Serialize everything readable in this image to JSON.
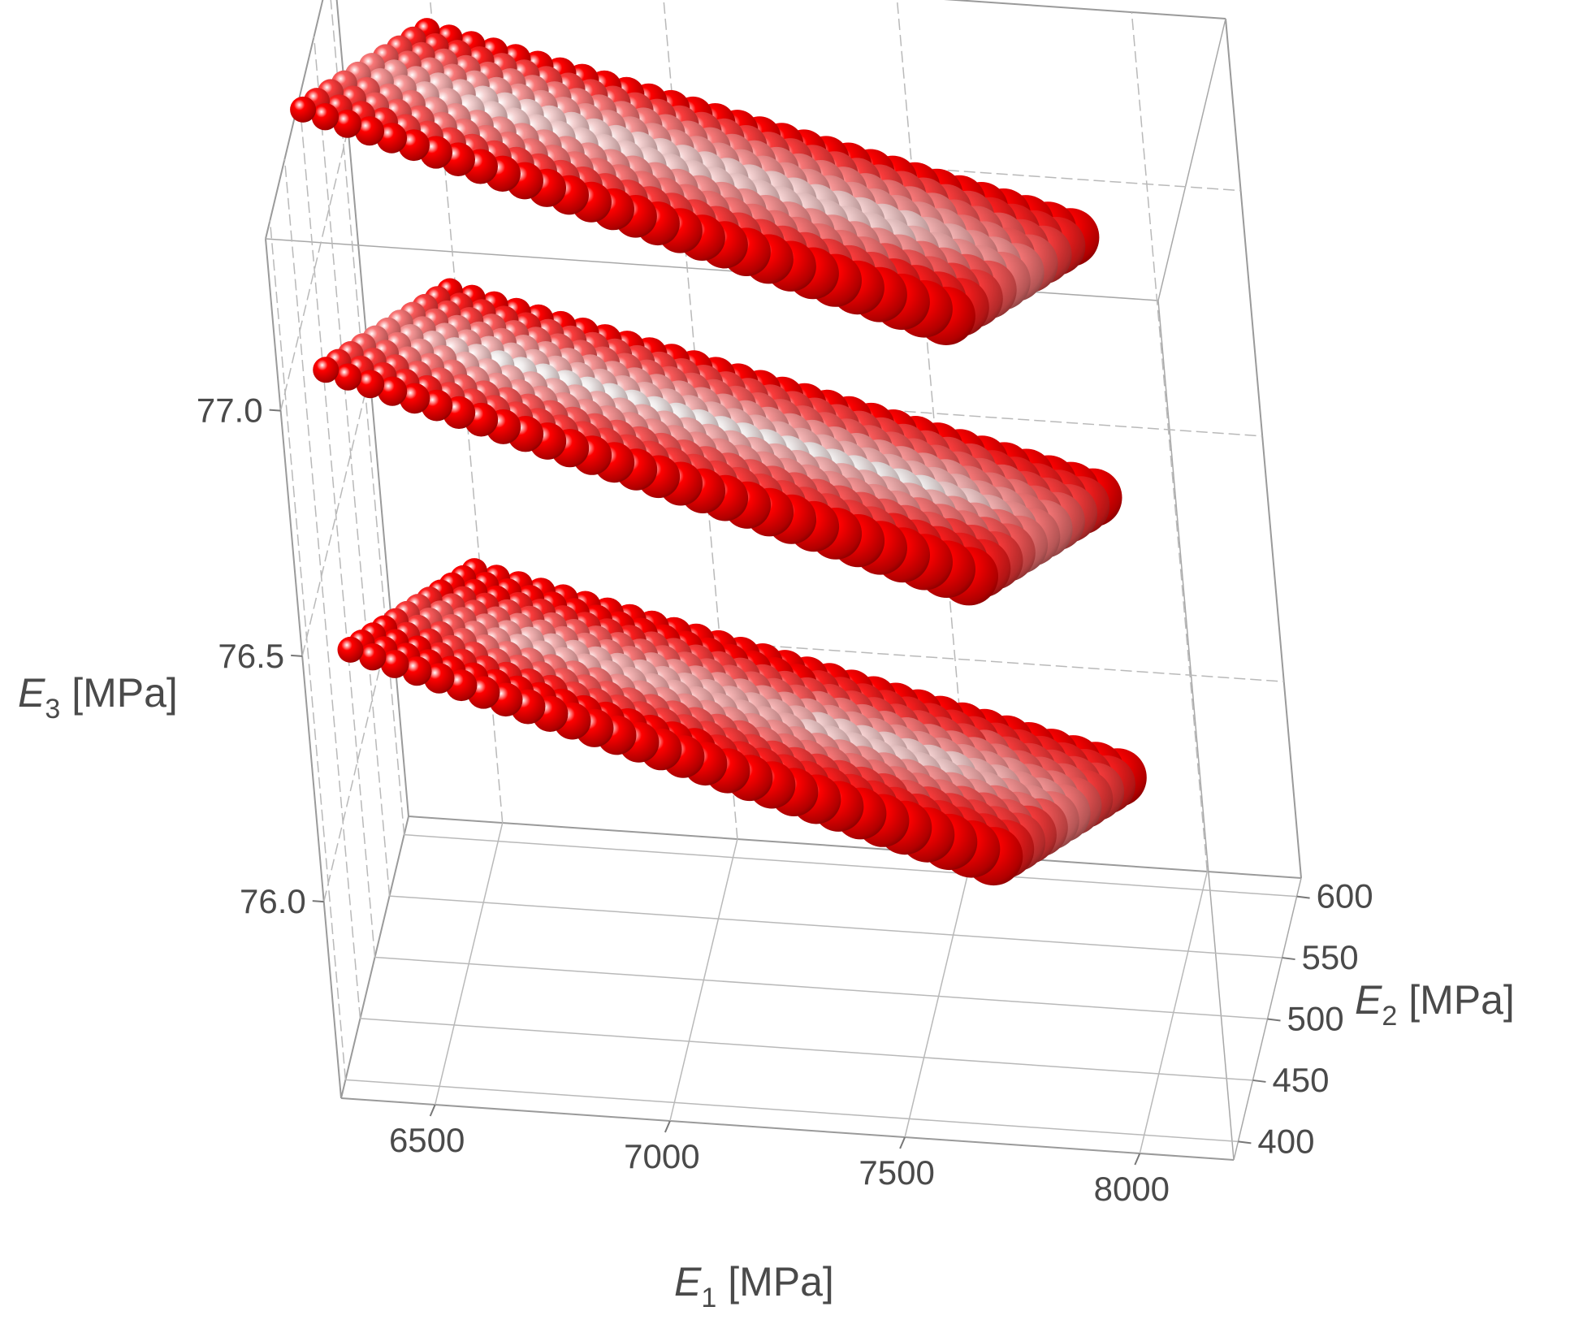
{
  "chart_data": {
    "type": "scatter",
    "subtype": "3d-point-cloud",
    "marker": "sphere",
    "color_scale": {
      "low": "#ff0000",
      "high": "#ffffff"
    },
    "grid": true,
    "axes": {
      "x": {
        "label": "E",
        "sub": "1",
        "unit": "[MPa]",
        "ticks": [
          "6500",
          "7000",
          "7500",
          "8000"
        ],
        "range": [
          6300,
          8200
        ]
      },
      "y": {
        "label": "E",
        "sub": "2",
        "unit": "[MPa]",
        "ticks": [
          "400",
          "450",
          "500",
          "550",
          "600"
        ],
        "range": [
          385,
          615
        ]
      },
      "z": {
        "label": "E",
        "sub": "3",
        "unit": "[MPa]",
        "ticks": [
          "76.0",
          "76.5",
          "77.0"
        ],
        "range": [
          75.6,
          77.35
        ]
      }
    },
    "series": [
      {
        "e3": 77.25,
        "e1_range": [
          6500,
          7950
        ],
        "e2_range": [
          400,
          600
        ],
        "grid_n1": 30,
        "grid_n2": 10,
        "band_width": 4
      },
      {
        "e3": 76.72,
        "e1_range": [
          6500,
          7950
        ],
        "e2_range": [
          400,
          600
        ],
        "grid_n1": 30,
        "grid_n2": 11,
        "band_width": 5
      },
      {
        "e3": 76.15,
        "e1_range": [
          6500,
          7950
        ],
        "e2_range": [
          400,
          600
        ],
        "grid_n1": 30,
        "grid_n2": 12,
        "band_width": 6
      }
    ]
  }
}
